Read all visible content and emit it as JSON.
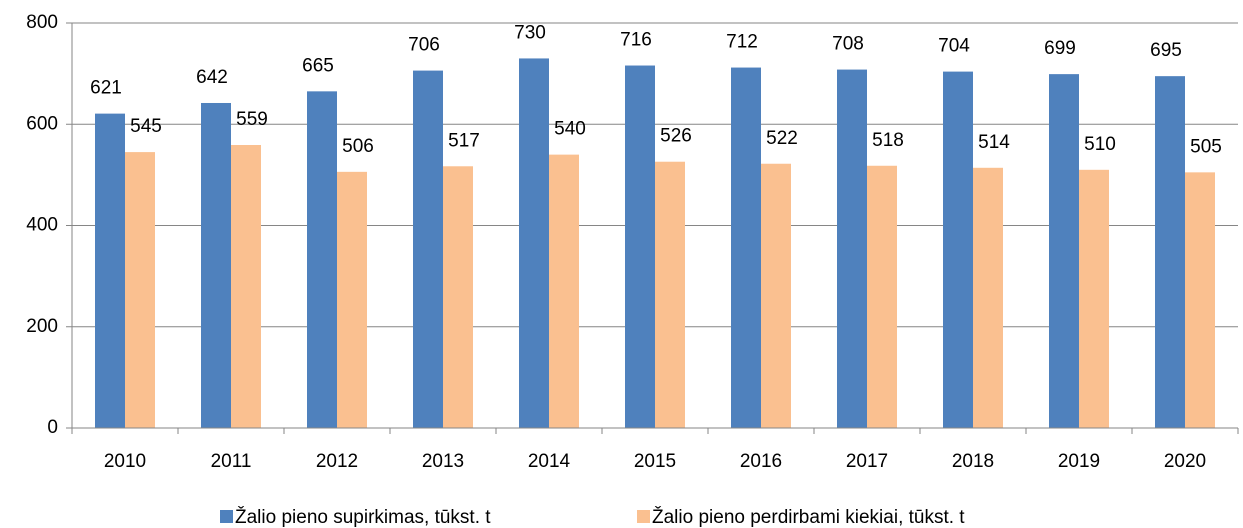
{
  "chart_data": {
    "type": "bar",
    "categories": [
      "2010",
      "2011",
      "2012",
      "2013",
      "2014",
      "2015",
      "2016",
      "2017",
      "2018",
      "2019",
      "2020"
    ],
    "series": [
      {
        "name": "Žalio pieno supirkimas, tūkst. t",
        "color": "#4f81bd",
        "values": [
          621,
          642,
          665,
          706,
          730,
          716,
          712,
          708,
          704,
          699,
          695
        ]
      },
      {
        "name": "Žalio pieno perdirbami kiekiai, tūkst. t",
        "color": "#fac090",
        "values": [
          545,
          559,
          506,
          517,
          540,
          526,
          522,
          518,
          514,
          510,
          505
        ]
      }
    ],
    "ylim": [
      0,
      800
    ],
    "yticks": [
      0,
      200,
      400,
      600,
      800
    ],
    "grid": true,
    "legend": "bottom"
  }
}
